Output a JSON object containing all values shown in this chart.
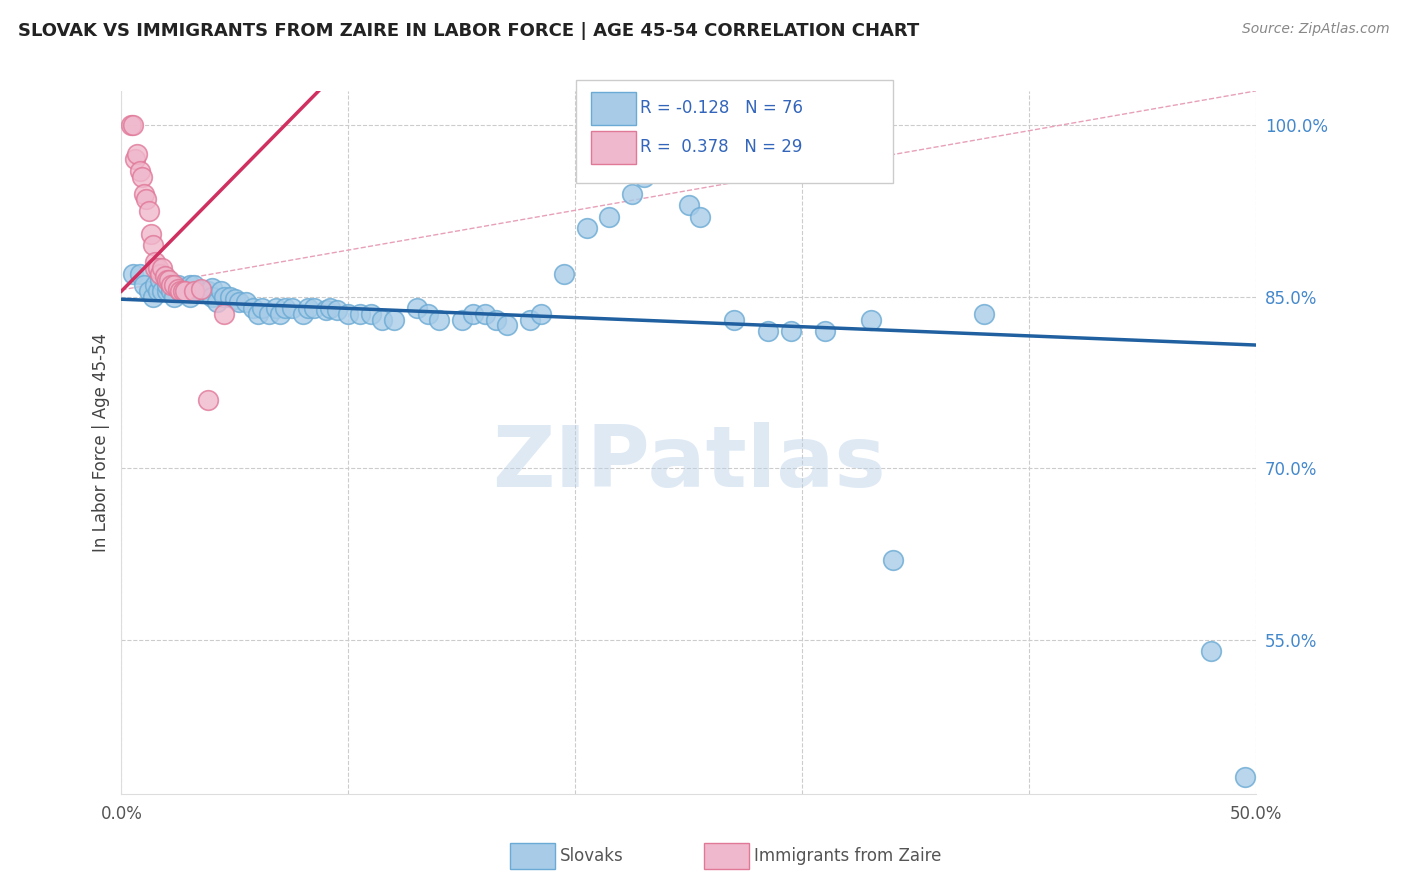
{
  "title": "SLOVAK VS IMMIGRANTS FROM ZAIRE IN LABOR FORCE | AGE 45-54 CORRELATION CHART",
  "source": "Source: ZipAtlas.com",
  "ylabel": "In Labor Force | Age 45-54",
  "xlim": [
    0.0,
    0.5
  ],
  "ylim": [
    0.415,
    1.03
  ],
  "xticks": [
    0.0,
    0.1,
    0.2,
    0.3,
    0.4,
    0.5
  ],
  "ytick_values_right": [
    1.0,
    0.85,
    0.7,
    0.55
  ],
  "legend_label1": "Slovaks",
  "legend_label2": "Immigrants from Zaire",
  "blue_color": "#a8cce8",
  "blue_edge_color": "#6aaad4",
  "pink_color": "#f0b8cc",
  "pink_edge_color": "#e07898",
  "blue_line_color": "#2060a0",
  "pink_line_color": "#d03060",
  "ref_line_color": "#d0a0b0",
  "r_blue": -0.128,
  "n_blue": 76,
  "r_pink": 0.378,
  "n_pink": 29,
  "watermark": "ZIPatlas",
  "blue_scatter_x": [
    0.005,
    0.008,
    0.01,
    0.012,
    0.014,
    0.015,
    0.016,
    0.017,
    0.018,
    0.02,
    0.02,
    0.022,
    0.023,
    0.025,
    0.026,
    0.028,
    0.03,
    0.03,
    0.032,
    0.034,
    0.035,
    0.038,
    0.04,
    0.04,
    0.042,
    0.044,
    0.045,
    0.048,
    0.05,
    0.052,
    0.055,
    0.058,
    0.06,
    0.062,
    0.065,
    0.068,
    0.07,
    0.072,
    0.075,
    0.08,
    0.082,
    0.085,
    0.09,
    0.092,
    0.095,
    0.1,
    0.105,
    0.11,
    0.115,
    0.12,
    0.13,
    0.135,
    0.14,
    0.15,
    0.155,
    0.16,
    0.165,
    0.17,
    0.18,
    0.185,
    0.195,
    0.205,
    0.215,
    0.225,
    0.23,
    0.25,
    0.255,
    0.27,
    0.285,
    0.295,
    0.31,
    0.33,
    0.34,
    0.38,
    0.48,
    0.495
  ],
  "blue_scatter_y": [
    0.87,
    0.87,
    0.86,
    0.855,
    0.85,
    0.86,
    0.855,
    0.865,
    0.855,
    0.855,
    0.86,
    0.855,
    0.85,
    0.86,
    0.855,
    0.855,
    0.85,
    0.86,
    0.86,
    0.855,
    0.855,
    0.855,
    0.858,
    0.85,
    0.845,
    0.855,
    0.85,
    0.85,
    0.848,
    0.845,
    0.845,
    0.84,
    0.835,
    0.84,
    0.835,
    0.84,
    0.835,
    0.84,
    0.84,
    0.835,
    0.84,
    0.84,
    0.838,
    0.84,
    0.838,
    0.835,
    0.835,
    0.835,
    0.83,
    0.83,
    0.84,
    0.835,
    0.83,
    0.83,
    0.835,
    0.835,
    0.83,
    0.825,
    0.83,
    0.835,
    0.87,
    0.91,
    0.92,
    0.94,
    0.955,
    0.93,
    0.92,
    0.83,
    0.82,
    0.82,
    0.82,
    0.83,
    0.62,
    0.835,
    0.54,
    0.43
  ],
  "pink_scatter_x": [
    0.004,
    0.005,
    0.006,
    0.007,
    0.008,
    0.009,
    0.01,
    0.011,
    0.012,
    0.013,
    0.014,
    0.015,
    0.015,
    0.016,
    0.017,
    0.018,
    0.019,
    0.02,
    0.021,
    0.022,
    0.023,
    0.025,
    0.026,
    0.027,
    0.028,
    0.032,
    0.035,
    0.038,
    0.045
  ],
  "pink_scatter_y": [
    1.0,
    1.0,
    0.97,
    0.975,
    0.96,
    0.955,
    0.94,
    0.935,
    0.925,
    0.905,
    0.895,
    0.88,
    0.875,
    0.875,
    0.87,
    0.875,
    0.868,
    0.865,
    0.865,
    0.86,
    0.86,
    0.857,
    0.855,
    0.855,
    0.855,
    0.855,
    0.857,
    0.76,
    0.835
  ]
}
